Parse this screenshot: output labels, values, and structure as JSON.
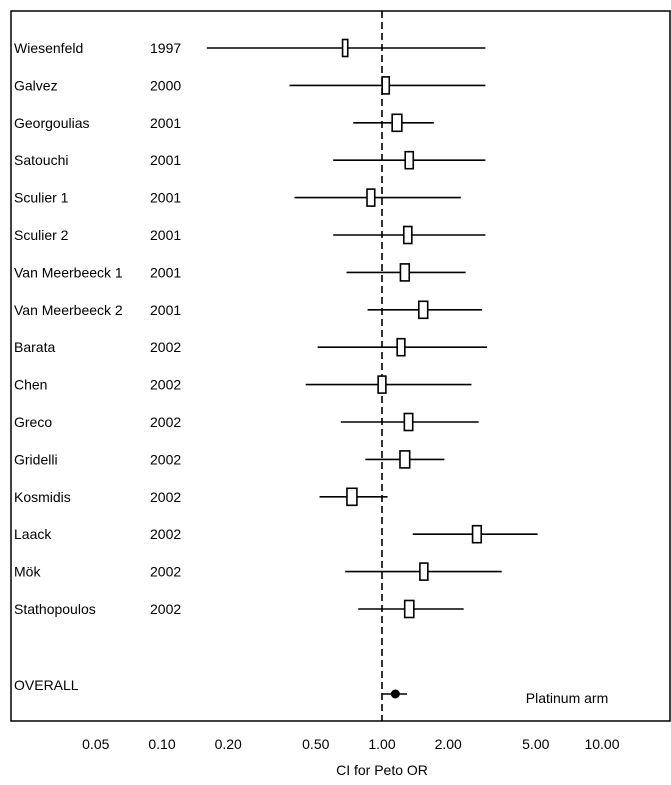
{
  "chart_data": {
    "type": "forest",
    "xlabel": "CI for Peto OR",
    "x_scale": "log",
    "xlim": [
      0.05,
      10.0
    ],
    "xtick_labels": [
      "0.05",
      "0.10",
      "0.20",
      "0.50",
      "1.00",
      "2.00",
      "5.00",
      "10.00"
    ],
    "xtick_values": [
      0.05,
      0.1,
      0.2,
      0.5,
      1.0,
      2.0,
      5.0,
      10.0
    ],
    "reference_line": 1.0,
    "annotation": "Platinum arm",
    "studies": [
      {
        "name": "Wiesenfeld",
        "year": "1997",
        "or": 0.68,
        "lower": 0.16,
        "upper": 2.95
      },
      {
        "name": "Galvez",
        "year": "2000",
        "or": 1.04,
        "lower": 0.38,
        "upper": 2.95
      },
      {
        "name": "Georgoulias",
        "year": "2001",
        "or": 1.17,
        "lower": 0.74,
        "upper": 1.72
      },
      {
        "name": "Satouchi",
        "year": "2001",
        "or": 1.33,
        "lower": 0.6,
        "upper": 2.95
      },
      {
        "name": "Sculier 1",
        "year": "2001",
        "or": 0.89,
        "lower": 0.4,
        "upper": 2.28
      },
      {
        "name": "Sculier 2",
        "year": "2001",
        "or": 1.31,
        "lower": 0.6,
        "upper": 2.95
      },
      {
        "name": "Van Meerbeeck 1",
        "year": "2001",
        "or": 1.27,
        "lower": 0.69,
        "upper": 2.4
      },
      {
        "name": "Van Meerbeeck 2",
        "year": "2001",
        "or": 1.54,
        "lower": 0.86,
        "upper": 2.85
      },
      {
        "name": "Barata",
        "year": "2002",
        "or": 1.22,
        "lower": 0.51,
        "upper": 3.0
      },
      {
        "name": "Chen",
        "year": "2002",
        "or": 1.0,
        "lower": 0.45,
        "upper": 2.55
      },
      {
        "name": "Greco",
        "year": "2002",
        "or": 1.32,
        "lower": 0.65,
        "upper": 2.75
      },
      {
        "name": "Gridelli",
        "year": "2002",
        "or": 1.27,
        "lower": 0.84,
        "upper": 1.92
      },
      {
        "name": "Kosmidis",
        "year": "2002",
        "or": 0.73,
        "lower": 0.52,
        "upper": 1.06
      },
      {
        "name": "Laack",
        "year": "2002",
        "or": 2.7,
        "lower": 1.38,
        "upper": 5.1
      },
      {
        "name": "Mök",
        "year": "2002",
        "or": 1.55,
        "lower": 0.68,
        "upper": 3.5
      },
      {
        "name": "Stathopoulos",
        "year": "2002",
        "or": 1.33,
        "lower": 0.78,
        "upper": 2.35
      }
    ],
    "overall": {
      "name": "OVERALL",
      "or": 1.15,
      "lower": 1.0,
      "upper": 1.3
    }
  }
}
